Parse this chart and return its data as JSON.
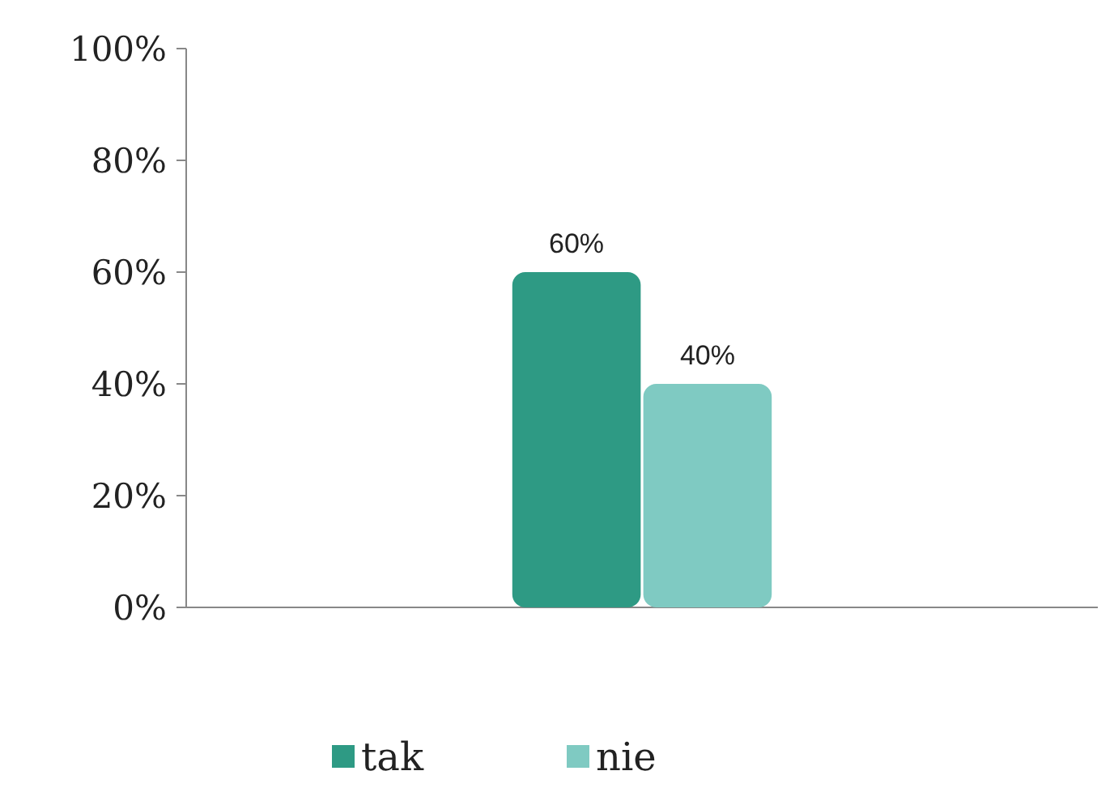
{
  "chart_data": {
    "type": "bar",
    "categories": [
      null
    ],
    "series": [
      {
        "name": "tak",
        "color": "#2e9a84",
        "values": [
          60
        ],
        "value_labels": [
          "60%"
        ]
      },
      {
        "name": "nie",
        "color": "#7fcac2",
        "values": [
          40
        ],
        "value_labels": [
          "40%"
        ]
      }
    ],
    "ylim": [
      0,
      100
    ],
    "yticks": [
      {
        "value": 0,
        "label": "0%"
      },
      {
        "value": 20,
        "label": "20%"
      },
      {
        "value": 40,
        "label": "40%"
      },
      {
        "value": 60,
        "label": "60%"
      },
      {
        "value": 80,
        "label": "80%"
      },
      {
        "value": 100,
        "label": "100%"
      }
    ],
    "grid": false,
    "legend": "bottom"
  }
}
